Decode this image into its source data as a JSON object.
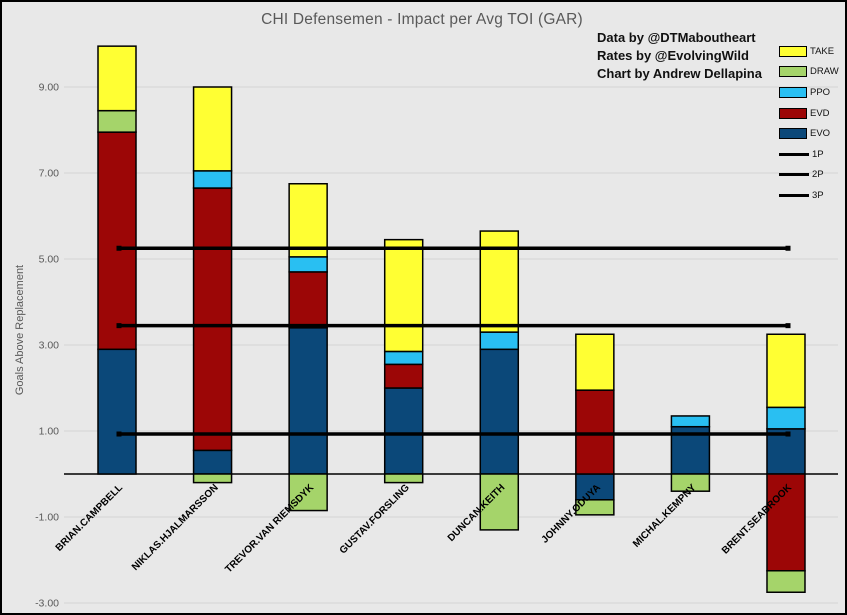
{
  "title": "CHI Defensemen - Impact per Avg TOI (GAR)",
  "credits": {
    "line1": "Data by @DTMaboutheart",
    "line2": "Rates by @EvolvingWild",
    "line3": "Chart by Andrew Dellapina"
  },
  "legend": {
    "position": "right",
    "items": [
      {
        "label": "TAKE",
        "type": "swatch",
        "color": "#FFFF33"
      },
      {
        "label": "DRAW",
        "type": "swatch",
        "color": "#A5D46A"
      },
      {
        "label": "PPO",
        "type": "swatch",
        "color": "#29BFF2"
      },
      {
        "label": "EVD",
        "type": "swatch",
        "color": "#9C0606"
      },
      {
        "label": "EVO",
        "type": "swatch",
        "color": "#0B4879"
      },
      {
        "label": "1P",
        "type": "line",
        "color": "#000000"
      },
      {
        "label": "2P",
        "type": "line",
        "color": "#000000"
      },
      {
        "label": "3P",
        "type": "line",
        "color": "#000000"
      }
    ]
  },
  "chart_data": {
    "type": "bar",
    "subtype": "stacked",
    "title": "CHI Defensemen - Impact per Avg TOI (GAR)",
    "xlabel": "",
    "ylabel": "Goals Above Replacement",
    "ylim": [
      -3.6,
      10.4
    ],
    "grid": "horizontal",
    "legend_position": "right",
    "yticks": [
      9,
      7,
      5,
      3,
      1,
      -1,
      -3
    ],
    "ytick_labels": [
      "9.00",
      "7.00",
      "5.00",
      "3.00",
      "1.00",
      "-1.00",
      "-3.00"
    ],
    "categories": [
      "BRIAN.CAMPBELL",
      "NIKLAS.HJALMARSSON",
      "TREVOR.VAN RIEMSDYK",
      "GUSTAV.FORSLING",
      "DUNCAN.KEITH",
      "JOHNNY.ODUYA",
      "MICHAL.KEMPNY",
      "BRENT.SEABROOK"
    ],
    "series": [
      {
        "name": "EVO",
        "color": "#0B4879",
        "values": [
          2.9,
          0.55,
          3.4,
          2.0,
          2.9,
          -0.6,
          1.1,
          1.05
        ]
      },
      {
        "name": "EVD",
        "color": "#9C0606",
        "values": [
          5.05,
          6.1,
          1.3,
          0.55,
          0.0,
          1.95,
          0.0,
          -2.25
        ]
      },
      {
        "name": "PPO",
        "color": "#29BFF2",
        "values": [
          0.0,
          0.4,
          0.35,
          0.3,
          0.4,
          0.0,
          0.25,
          0.5
        ]
      },
      {
        "name": "DRAW",
        "color": "#A5D46A",
        "values": [
          0.5,
          -0.2,
          -0.85,
          -0.2,
          -1.3,
          -0.35,
          -0.4,
          -0.5
        ]
      },
      {
        "name": "TAKE",
        "color": "#FFFF33",
        "values": [
          1.5,
          1.95,
          1.7,
          2.6,
          2.35,
          1.3,
          0.0,
          1.7
        ]
      }
    ],
    "reference_lines": [
      {
        "name": "1P",
        "value": 5.25,
        "color": "#000000"
      },
      {
        "name": "2P",
        "value": 3.45,
        "color": "#000000"
      },
      {
        "name": "3P",
        "value": 0.93,
        "color": "#000000"
      }
    ]
  }
}
